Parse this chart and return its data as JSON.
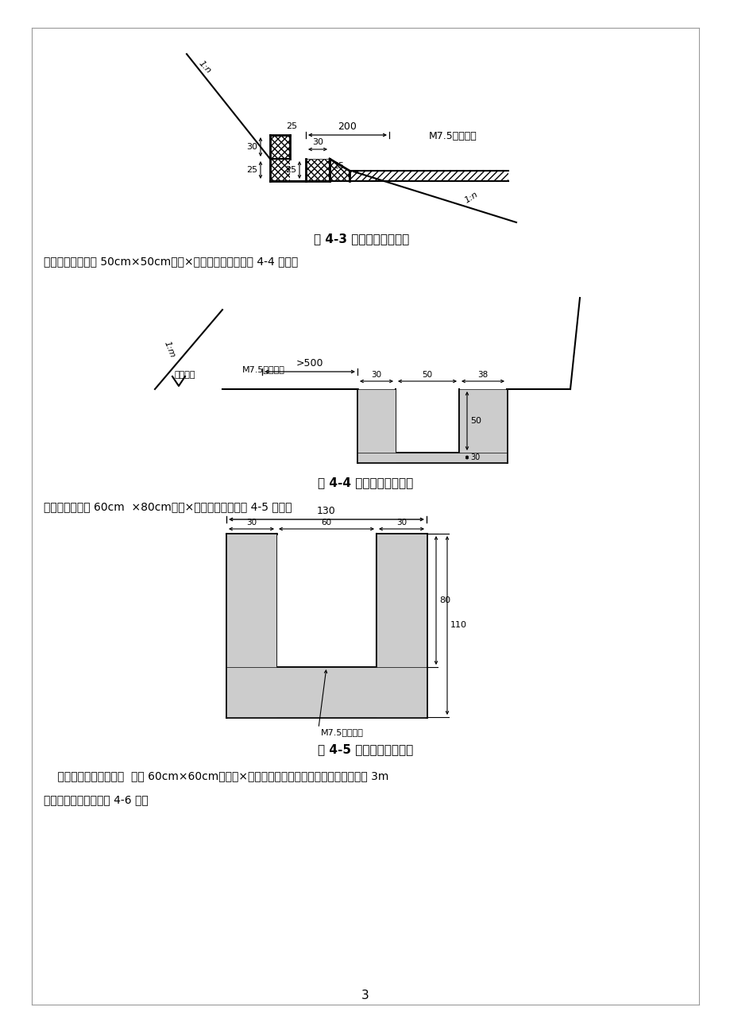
{
  "page_bg": "#ffffff",
  "fig43_caption": "图 4-3 平台引水沟示意图",
  "fig44_caption": "图 4-4 堑顶截水沟示意图",
  "fig45_caption": "图 4-5 路堤排水沟示意图",
  "text1": "堑顶截水沟：采用 50cm×50cm（宽×高）的矩形边沟如图 4-4 所示：",
  "text2": "路堤排水沟采用 60cm  ×80cm（宽×高）矩形边沟如图 4-5 所示：",
  "text3": "    分离式路基中间排水沟  采用 60cm×60cm（底宽×深）的梯形边沟，适用于中央分隔带大于 3m",
  "text4": "的分离式路基段，如图 4-6 示：",
  "page_num": "3"
}
